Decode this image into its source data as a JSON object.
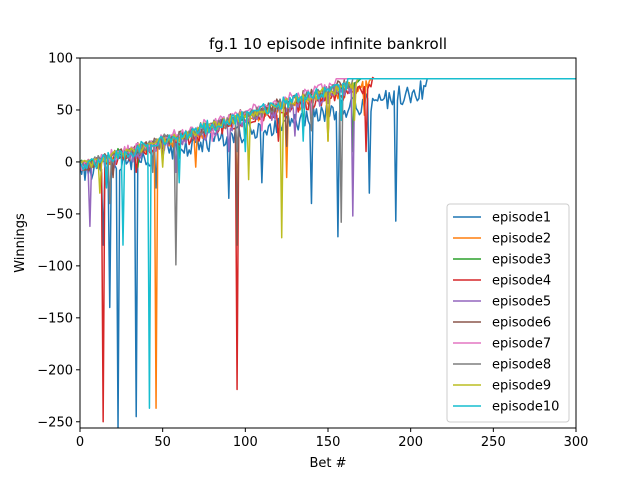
{
  "chart_data": {
    "type": "line",
    "title": "fg.1 10 episode infinite bankroll",
    "xlabel": "Bet #",
    "ylabel": "Winnings",
    "xlim": [
      0,
      300
    ],
    "ylim": [
      -256,
      100
    ],
    "xticks": [
      0,
      50,
      100,
      150,
      200,
      250,
      300
    ],
    "yticks": [
      100,
      50,
      0,
      -50,
      -100,
      -150,
      -200,
      -250
    ],
    "tick_labels_x": [
      "0",
      "50",
      "100",
      "150",
      "200",
      "250",
      "300"
    ],
    "tick_labels_y": [
      "100",
      "50",
      "0",
      "−50",
      "−100",
      "−150",
      "−200",
      "−250"
    ],
    "grid": false,
    "legend_position": "lower-right",
    "plateau": 80,
    "series": [
      {
        "name": "episode1",
        "color": "#1f77b4",
        "reach": 210,
        "spread": 9,
        "dips": [
          [
            14,
            -80
          ],
          [
            18,
            -140
          ],
          [
            23,
            -256
          ],
          [
            34,
            -245
          ],
          [
            46,
            -25
          ],
          [
            90,
            -35
          ],
          [
            110,
            -20
          ],
          [
            140,
            -40
          ],
          [
            156,
            -72
          ],
          [
            175,
            -30
          ],
          [
            191,
            -57
          ]
        ]
      },
      {
        "name": "episode2",
        "color": "#ff7f0e",
        "reach": 176,
        "spread": 5,
        "dips": [
          [
            16,
            -20
          ],
          [
            46,
            -237
          ],
          [
            70,
            -5
          ],
          [
            95,
            -40
          ],
          [
            125,
            -15
          ],
          [
            150,
            20
          ],
          [
            172,
            45
          ]
        ]
      },
      {
        "name": "episode3",
        "color": "#2ca02c",
        "reach": 170,
        "spread": 3,
        "dips": [
          [
            10,
            -5
          ],
          [
            35,
            -5
          ],
          [
            60,
            5
          ],
          [
            100,
            20
          ],
          [
            135,
            30
          ],
          [
            165,
            10
          ]
        ]
      },
      {
        "name": "episode4",
        "color": "#d62728",
        "reach": 178,
        "spread": 6,
        "dips": [
          [
            14,
            -250
          ],
          [
            34,
            -10
          ],
          [
            95,
            -219
          ],
          [
            120,
            20
          ],
          [
            150,
            25
          ],
          [
            173,
            10
          ]
        ]
      },
      {
        "name": "episode5",
        "color": "#9467bd",
        "reach": 168,
        "spread": 7,
        "dips": [
          [
            6,
            -62
          ],
          [
            20,
            -10
          ],
          [
            58,
            -10
          ],
          [
            90,
            10
          ],
          [
            130,
            25
          ],
          [
            165,
            -52
          ]
        ]
      },
      {
        "name": "episode6",
        "color": "#8c564b",
        "reach": 160,
        "spread": 5,
        "dips": [
          [
            20,
            -15
          ],
          [
            50,
            0
          ],
          [
            95,
            -80
          ],
          [
            125,
            15
          ],
          [
            150,
            30
          ]
        ]
      },
      {
        "name": "episode7",
        "color": "#e377c2",
        "reach": 155,
        "spread": 4,
        "dips": [
          [
            15,
            0
          ],
          [
            45,
            10
          ],
          [
            80,
            20
          ],
          [
            110,
            30
          ],
          [
            140,
            45
          ]
        ]
      },
      {
        "name": "episode8",
        "color": "#7f7f7f",
        "reach": 165,
        "spread": 5,
        "dips": [
          [
            18,
            -40
          ],
          [
            44,
            -10
          ],
          [
            58,
            -99
          ],
          [
            95,
            10
          ],
          [
            140,
            30
          ],
          [
            158,
            -58
          ]
        ]
      },
      {
        "name": "episode9",
        "color": "#bcbd22",
        "reach": 168,
        "spread": 4,
        "dips": [
          [
            12,
            -30
          ],
          [
            50,
            -5
          ],
          [
            102,
            -17
          ],
          [
            122,
            -73
          ],
          [
            150,
            20
          ],
          [
            166,
            40
          ]
        ]
      },
      {
        "name": "episode10",
        "color": "#17becf",
        "reach": 162,
        "spread": 5,
        "dips": [
          [
            16,
            -25
          ],
          [
            26,
            -80
          ],
          [
            42,
            -237
          ],
          [
            60,
            -20
          ],
          [
            100,
            10
          ],
          [
            135,
            20
          ],
          [
            158,
            40
          ]
        ]
      }
    ]
  }
}
